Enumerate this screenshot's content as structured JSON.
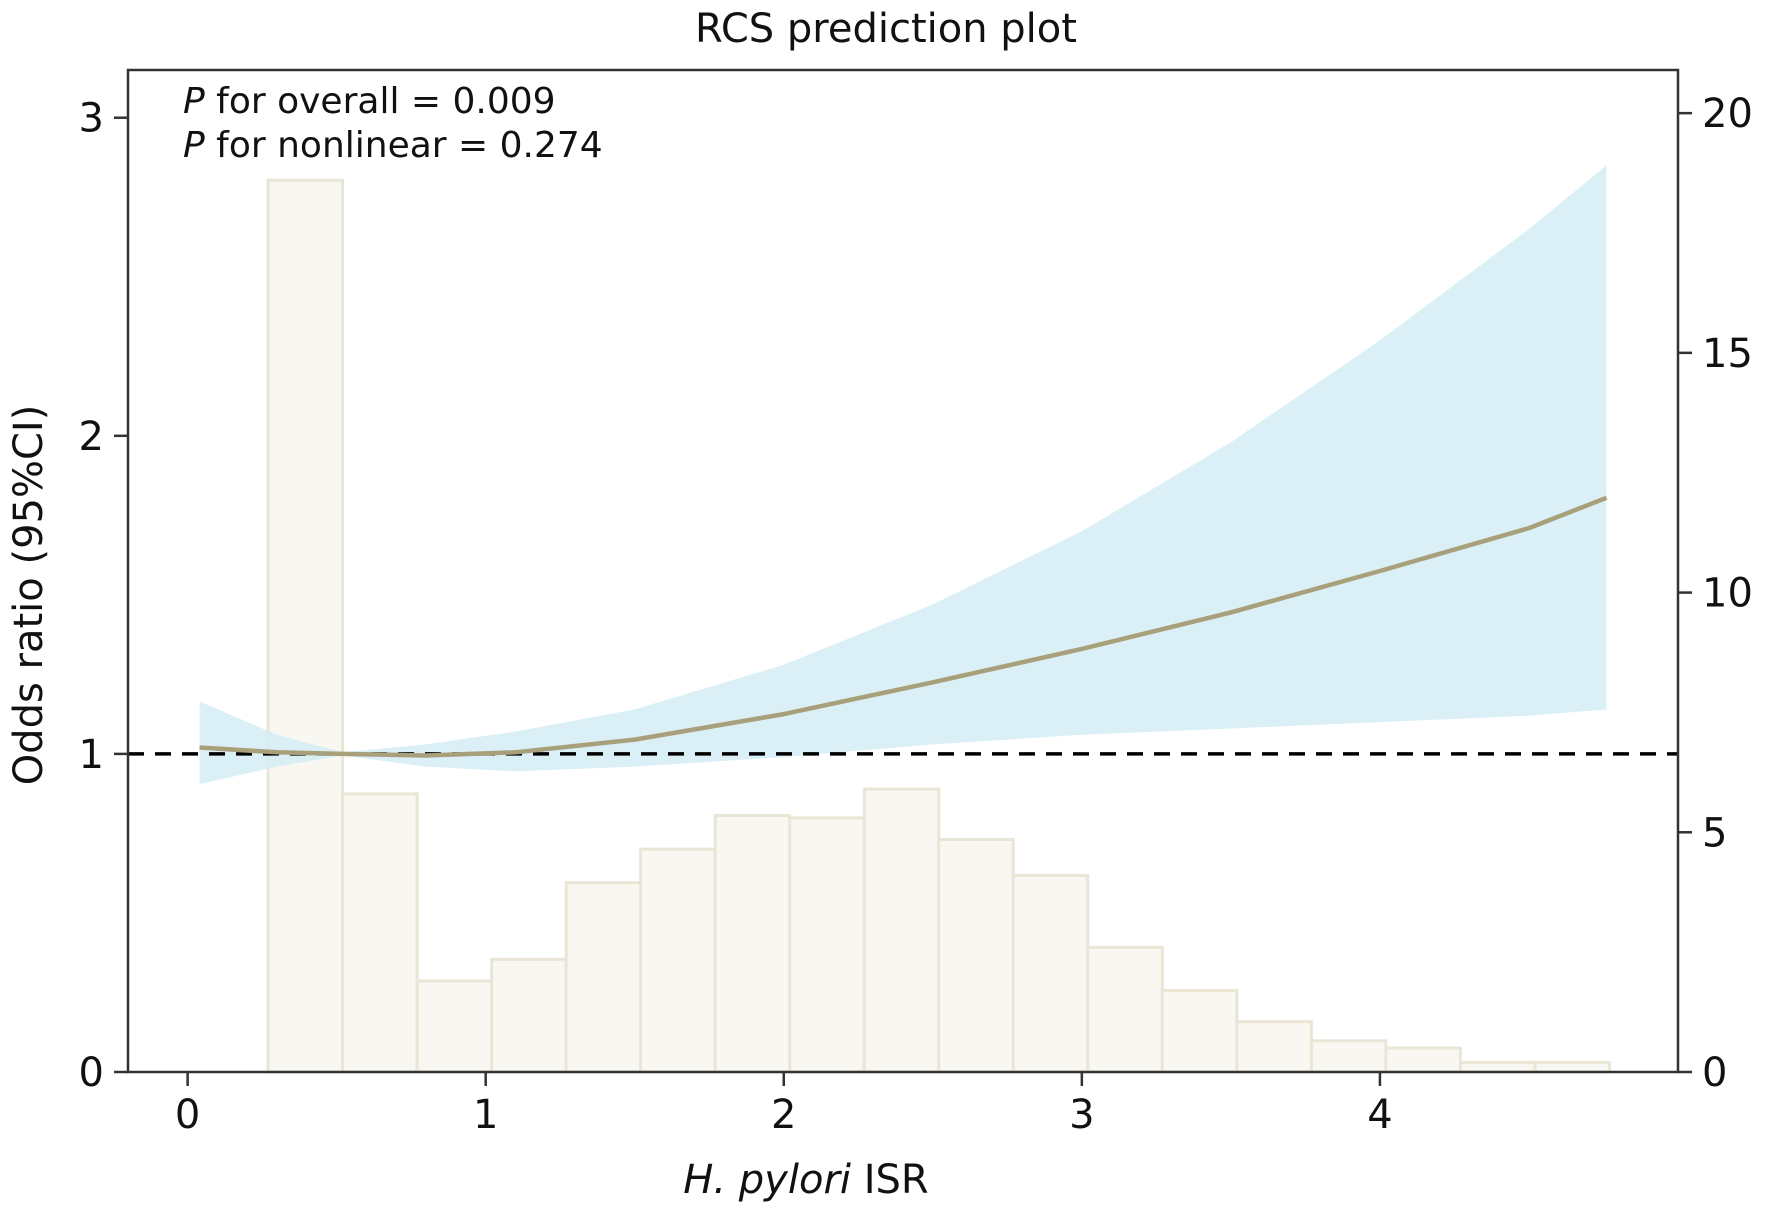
{
  "chart_data": {
    "type": "line",
    "title": "RCS prediction plot",
    "xlabel_italic": "H. pylori",
    "xlabel_rest": " ISR",
    "ylabel": "Odds ratio (95%CI)",
    "annotations": [
      {
        "italic": "P",
        "rest": " for overall = 0.009"
      },
      {
        "italic": "P",
        "rest": " for nonlinear = 0.274"
      }
    ],
    "xlim": [
      -0.2,
      5.0
    ],
    "ylim": [
      0,
      3.15
    ],
    "y2lim": [
      0,
      20.9
    ],
    "x_ticks": [
      0,
      1,
      2,
      3,
      4
    ],
    "y_ticks": [
      0,
      1,
      2,
      3
    ],
    "y2_ticks": [
      0,
      5,
      10,
      15,
      20
    ],
    "reference_line": 1,
    "histogram": {
      "bin_edges": [
        0.27,
        0.52,
        0.77,
        1.02,
        1.27,
        1.52,
        1.77,
        2.02,
        2.27,
        2.52,
        2.77,
        3.02,
        3.27,
        3.52,
        3.77,
        4.02,
        4.27,
        4.52,
        4.77
      ],
      "counts": [
        18.6,
        5.8,
        1.9,
        2.35,
        3.95,
        4.65,
        5.35,
        5.3,
        5.9,
        4.85,
        4.1,
        2.6,
        1.7,
        1.05,
        0.65,
        0.5,
        0.2,
        0.2
      ]
    },
    "series": [
      {
        "name": "Odds ratio",
        "x": [
          0.04,
          0.3,
          0.52,
          0.8,
          1.1,
          1.5,
          2.0,
          2.5,
          3.0,
          3.5,
          4.0,
          4.5,
          4.76
        ],
        "y": [
          1.02,
          1.005,
          1.0,
          0.995,
          1.005,
          1.045,
          1.125,
          1.225,
          1.33,
          1.445,
          1.575,
          1.71,
          1.805
        ]
      },
      {
        "name": "95% CI lower",
        "x": [
          0.04,
          0.3,
          0.52,
          0.8,
          1.1,
          1.5,
          2.0,
          2.5,
          3.0,
          3.5,
          4.0,
          4.5,
          4.76
        ],
        "y": [
          0.905,
          0.96,
          0.995,
          0.96,
          0.945,
          0.96,
          0.99,
          1.03,
          1.06,
          1.08,
          1.1,
          1.12,
          1.14
        ]
      },
      {
        "name": "95% CI upper",
        "x": [
          0.04,
          0.3,
          0.52,
          0.8,
          1.1,
          1.5,
          2.0,
          2.5,
          3.0,
          3.5,
          4.0,
          4.5,
          4.76
        ],
        "y": [
          1.165,
          1.06,
          1.005,
          1.03,
          1.07,
          1.14,
          1.28,
          1.47,
          1.7,
          1.98,
          2.3,
          2.65,
          2.85
        ]
      }
    ],
    "colors": {
      "curve": "#a8a07a",
      "ci_fill": "#d4edf5",
      "hist_fill": "#f8f7f1",
      "hist_stroke": "#e9e6d6",
      "axis": "#333333",
      "reference": "#000000"
    }
  }
}
